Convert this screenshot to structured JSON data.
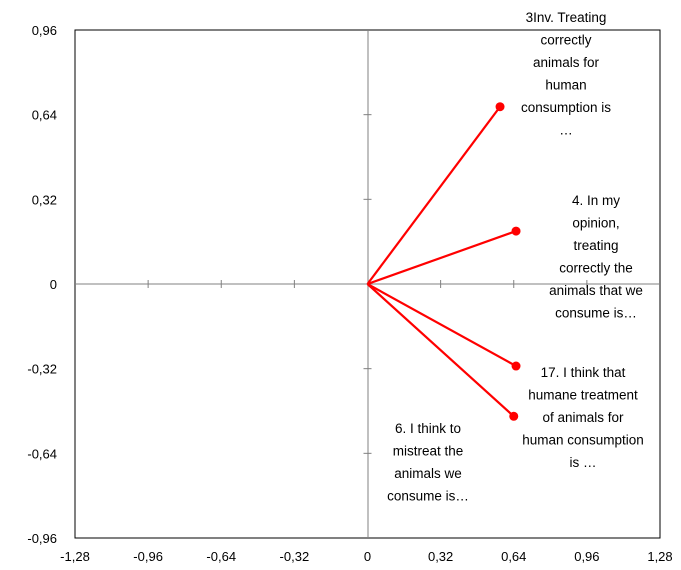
{
  "chart_data": {
    "type": "scatter",
    "title": "",
    "xlabel": "",
    "ylabel": "",
    "xlim": [
      -1.28,
      1.28
    ],
    "ylim": [
      -0.96,
      0.96
    ],
    "x_ticks": [
      "-1,28",
      "-0,96",
      "-0,64",
      "-0,32",
      "0",
      "0,32",
      "0,64",
      "0,96",
      "1,28"
    ],
    "y_ticks": [
      "0,96",
      "0,64",
      "0,32",
      "0",
      "-0,32",
      "-0,64",
      "-0,96"
    ],
    "grid": false,
    "legend": "none",
    "line_color": "#ff0000",
    "vectors": [
      {
        "x": 0.58,
        "y": 0.67,
        "label": [
          "3Inv. Treating",
          "correctly",
          "animals for",
          "human",
          "consumption is",
          "…"
        ]
      },
      {
        "x": 0.65,
        "y": 0.2,
        "label": [
          "4. In my",
          "opinion,",
          "treating",
          "correctly the",
          "animals that we",
          "consume is…"
        ]
      },
      {
        "x": 0.65,
        "y": -0.31,
        "label": [
          "17. I think that",
          "humane treatment",
          "of animals for",
          "human consumption",
          "is …"
        ]
      },
      {
        "x": 0.64,
        "y": -0.5,
        "label": [
          "6. I think to",
          "mistreat the",
          "animals we",
          "consume is…"
        ]
      }
    ]
  }
}
